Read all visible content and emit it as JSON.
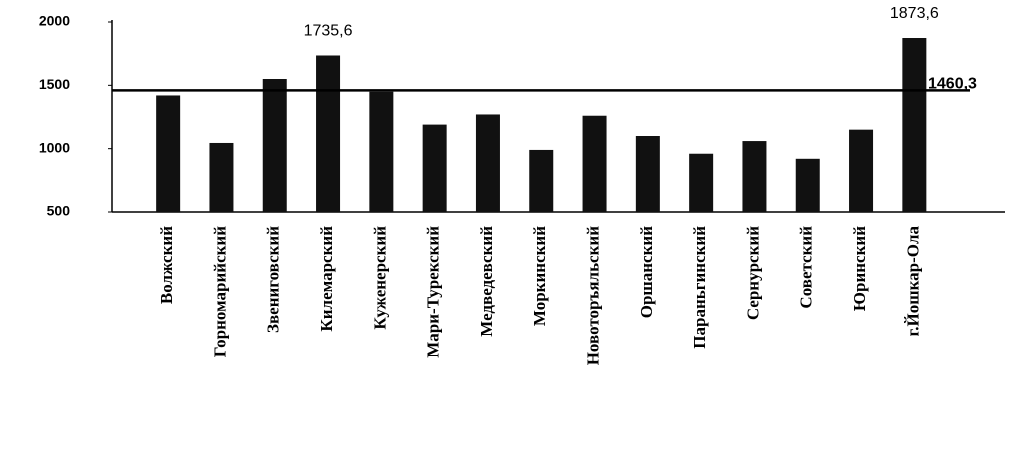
{
  "chart_data": {
    "type": "bar",
    "categories": [
      "Волжский",
      "Горномарийский",
      "Звениговский",
      "Килемарский",
      "Куженерский",
      "Мари-Турекский",
      "Медведевский",
      "Моркинский",
      "Новоторъяльский",
      "Оршанский",
      "Параньгинский",
      "Сернурский",
      "Советский",
      "Юринский",
      "г.Йошкар-Ола"
    ],
    "values": [
      1420,
      1045,
      1550,
      1735.6,
      1450,
      1190,
      1270,
      990,
      1260,
      1100,
      960,
      1060,
      920,
      1150,
      1873.6
    ],
    "value_labels": [
      null,
      null,
      null,
      "1735,6",
      null,
      null,
      null,
      null,
      null,
      null,
      null,
      null,
      null,
      null,
      "1873,6"
    ],
    "color": "#111111",
    "ylim": [
      500,
      2000
    ],
    "yticks": [
      500,
      1000,
      1500,
      2000
    ],
    "reference_line": {
      "value": 1460.3,
      "label": "1460,3"
    }
  }
}
